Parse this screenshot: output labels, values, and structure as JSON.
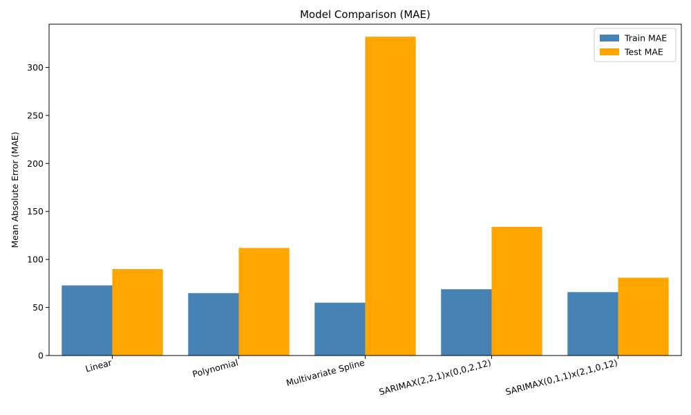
{
  "chart_data": {
    "type": "bar",
    "title": "Model Comparison (MAE)",
    "xlabel": "",
    "ylabel": "Mean Absolute Error (MAE)",
    "categories": [
      "Linear",
      "Polynomial",
      "Multivariate Spline",
      "SARIMAX(2,2,1)x(0,0,2,12)",
      "SARIMAX(0,1,1)x(2,1,0,12)"
    ],
    "series": [
      {
        "name": "Train MAE",
        "color": "#4682b4",
        "values": [
          73,
          65,
          55,
          69,
          66
        ]
      },
      {
        "name": "Test MAE",
        "color": "#ffa500",
        "values": [
          90,
          112,
          332,
          134,
          81
        ]
      }
    ],
    "ylim": [
      0,
      345
    ],
    "yticks": [
      0,
      50,
      100,
      150,
      200,
      250,
      300
    ],
    "grid": false,
    "legend_position": "top-right"
  }
}
